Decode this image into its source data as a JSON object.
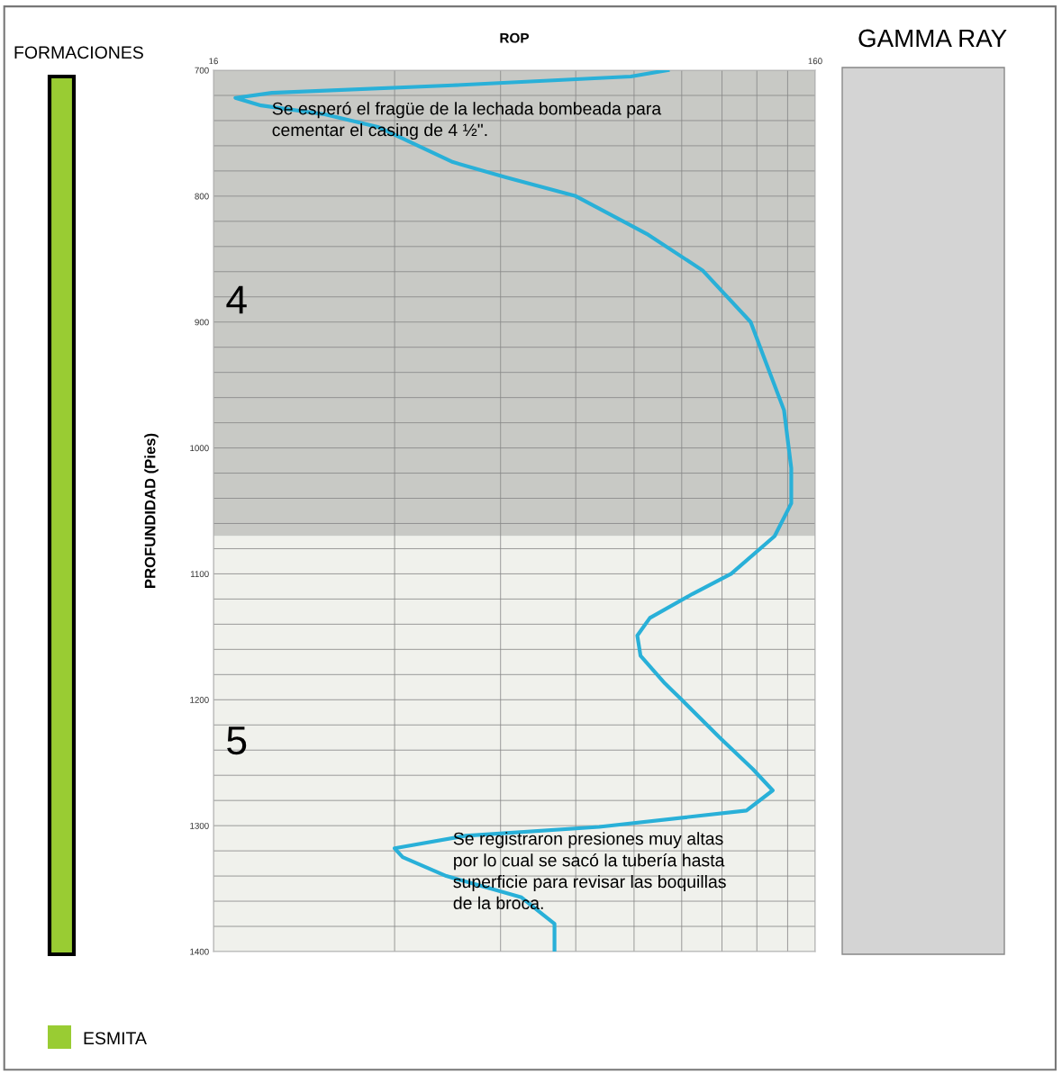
{
  "chart_data": {
    "type": "line",
    "title": "ROP",
    "ylabel": "PROFUNDIDAD (Pies)",
    "orientation": "horizontal",
    "log": "x",
    "xlim": [
      16,
      160
    ],
    "xticks": [
      16,
      {
        "value": 32,
        "label": null
      },
      {
        "value": 48,
        "label": null
      },
      {
        "value": 64,
        "label": null
      },
      {
        "value": 80,
        "label": null
      },
      {
        "value": 96,
        "label": null
      },
      {
        "value": 112,
        "label": null
      },
      {
        "value": 128,
        "label": null
      },
      {
        "value": 144,
        "label": null
      },
      160
    ],
    "ylim": [
      1400,
      700
    ],
    "yticks": [
      700,
      {
        "value": 720,
        "label": null
      },
      {
        "value": 740,
        "label": null
      },
      {
        "value": 760,
        "label": null
      },
      {
        "value": 780,
        "label": null
      },
      800,
      {
        "value": 820,
        "label": null
      },
      {
        "value": 840,
        "label": null
      },
      {
        "value": 860,
        "label": null
      },
      {
        "value": 880,
        "label": null
      },
      900,
      {
        "value": 920,
        "label": null
      },
      {
        "value": 940,
        "label": null
      },
      {
        "value": 960,
        "label": null
      },
      {
        "value": 980,
        "label": null
      },
      1000,
      {
        "value": 1020,
        "label": null
      },
      {
        "value": 1040,
        "label": null
      },
      {
        "value": 1060,
        "label": null
      },
      {
        "value": 1080,
        "label": null
      },
      1100,
      {
        "value": 1120,
        "label": null
      },
      {
        "value": 1140,
        "label": null
      },
      {
        "value": 1160,
        "label": null
      },
      {
        "value": 1180,
        "label": null
      },
      1200,
      {
        "value": 1220,
        "label": null
      },
      {
        "value": 1240,
        "label": null
      },
      {
        "value": 1260,
        "label": null
      },
      {
        "value": 1280,
        "label": null
      },
      1300,
      {
        "value": 1320,
        "label": null
      },
      {
        "value": 1340,
        "label": null
      },
      {
        "value": 1360,
        "label": null
      },
      {
        "value": 1380,
        "label": null
      },
      1400
    ],
    "grid": true,
    "x": [
      700,
      705,
      712,
      718,
      722,
      728,
      735,
      745,
      760,
      773,
      785,
      800,
      830,
      859,
      900,
      930,
      970,
      1016,
      1044,
      1070,
      1100,
      1116,
      1135,
      1149,
      1165,
      1187,
      1200,
      1230,
      1255,
      1272,
      1288,
      1301,
      1308,
      1318,
      1325,
      1340,
      1357,
      1378,
      1400
    ],
    "series": [
      {
        "color": "#29b0d8",
        "values": [
          91,
          79,
          40,
          20,
          17.4,
          19.2,
          24.5,
          30,
          35,
          40,
          49,
          64,
          84,
          104,
          125,
          132,
          142,
          146,
          146,
          137,
          116,
          100,
          85,
          81,
          82,
          90,
          96,
          111,
          126,
          136,
          123,
          70,
          42,
          32,
          33,
          39,
          52,
          59,
          59
        ]
      }
    ],
    "bands": [
      {
        "axis": "y",
        "from": 700,
        "to": 1070,
        "label": "4",
        "color": "#c8c9c5"
      },
      {
        "axis": "y",
        "from": 1070,
        "to": 1400,
        "label": "5",
        "color": "#f0f1ec"
      }
    ],
    "annotations": [
      {
        "text": "Se esperó el fragüe de la lechada bombeada para\ncementar el casing de 4 ½\".",
        "x": 20,
        "y": 725
      },
      {
        "text": "Se registraron presiones muy altas\npor lo cual se sacó la tubería hasta\nsuperficie para revisar las boquillas\nde la broca.",
        "x": 40,
        "y": 1305
      },
      "GAMMA RAY",
      "FORMACIONES",
      "ESMITA"
    ]
  }
}
